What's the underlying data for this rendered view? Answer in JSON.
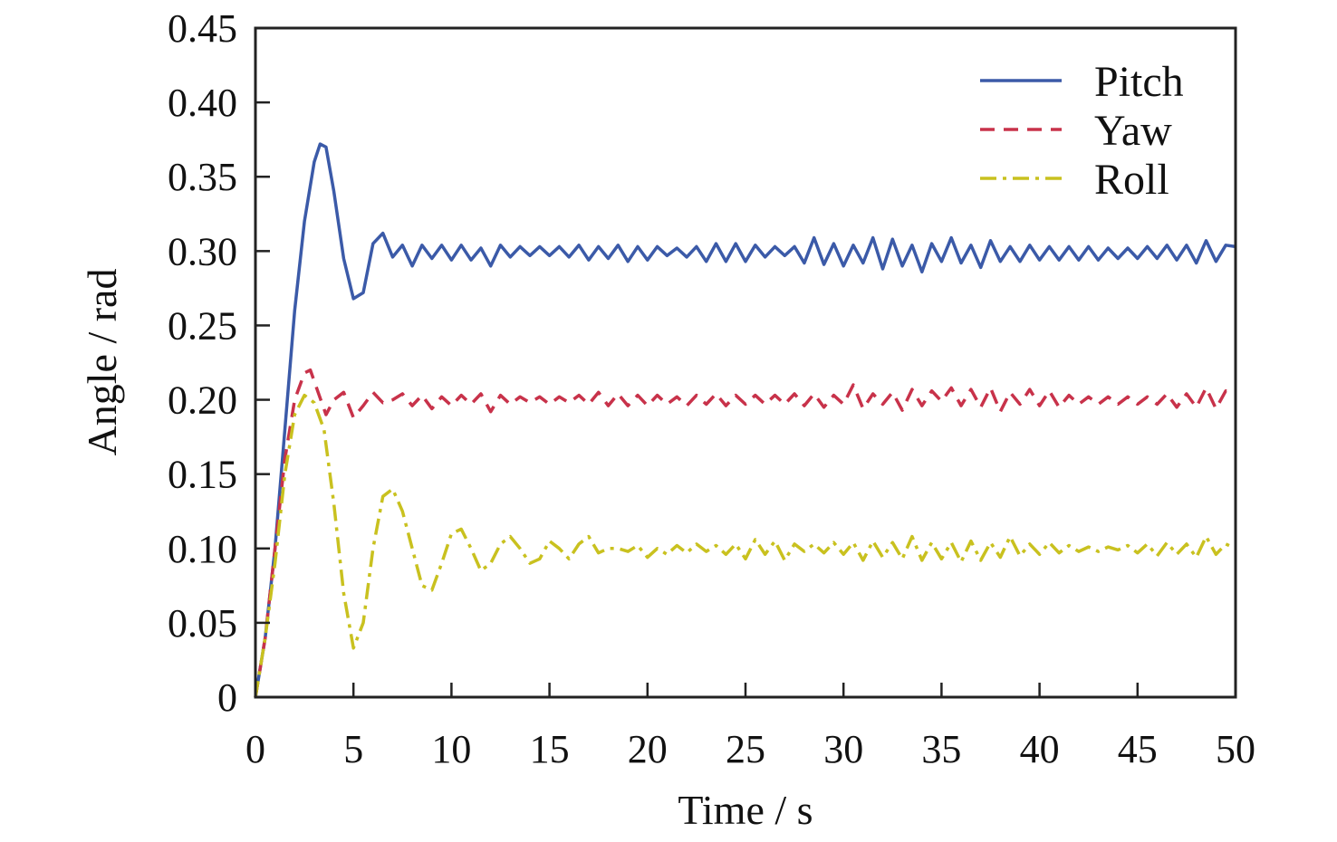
{
  "chart_data": {
    "type": "line",
    "xlabel": "Time / s",
    "ylabel": "Angle / rad",
    "xlim": [
      0,
      50
    ],
    "ylim": [
      0,
      0.45
    ],
    "x_ticks": [
      0,
      5,
      10,
      15,
      20,
      25,
      30,
      35,
      40,
      45,
      50
    ],
    "x_tick_labels": [
      "0",
      "5",
      "10",
      "15",
      "20",
      "25",
      "30",
      "35",
      "40",
      "45",
      "50"
    ],
    "y_ticks": [
      0,
      0.05,
      0.1,
      0.15,
      0.2,
      0.25,
      0.3,
      0.35,
      0.4,
      0.45
    ],
    "y_tick_labels": [
      "0",
      "0.05",
      "0.10",
      "0.15",
      "0.20",
      "0.25",
      "0.30",
      "0.35",
      "0.40",
      "0.45"
    ],
    "grid": false,
    "legend_position": "top-right",
    "series": [
      {
        "name": "Pitch",
        "color": "#3b5aa8",
        "style": "solid",
        "x": [
          0,
          0.5,
          1.0,
          1.5,
          2.0,
          2.5,
          3.0,
          3.3,
          3.6,
          4.0,
          4.5,
          5.0,
          5.5,
          6.0,
          6.5,
          7.0,
          7.5,
          8.0,
          8.5,
          9.0,
          9.5,
          10.0,
          10.5,
          11.0,
          11.5,
          12.0,
          12.5,
          13.0,
          13.5,
          14.0,
          14.5,
          15.0,
          15.5,
          16.0,
          16.5,
          17.0,
          17.5,
          18.0,
          18.5,
          19.0,
          19.5,
          20.0,
          20.5,
          21.0,
          21.5,
          22.0,
          22.5,
          23.0,
          23.5,
          24.0,
          24.5,
          25.0,
          25.5,
          26.0,
          26.5,
          27.0,
          27.5,
          28.0,
          28.5,
          29.0,
          29.5,
          30.0,
          30.5,
          31.0,
          31.5,
          32.0,
          32.5,
          33.0,
          33.5,
          34.0,
          34.5,
          35.0,
          35.5,
          36.0,
          36.5,
          37.0,
          37.5,
          38.0,
          38.5,
          39.0,
          39.5,
          40.0,
          40.5,
          41.0,
          41.5,
          42.0,
          42.5,
          43.0,
          43.5,
          44.0,
          44.5,
          45.0,
          45.5,
          46.0,
          46.5,
          47.0,
          47.5,
          48.0,
          48.5,
          49.0,
          49.5,
          50.0
        ],
        "values": [
          0,
          0.04,
          0.1,
          0.18,
          0.26,
          0.32,
          0.36,
          0.372,
          0.37,
          0.34,
          0.295,
          0.268,
          0.272,
          0.305,
          0.312,
          0.296,
          0.304,
          0.29,
          0.304,
          0.295,
          0.304,
          0.294,
          0.304,
          0.294,
          0.302,
          0.29,
          0.304,
          0.296,
          0.303,
          0.297,
          0.303,
          0.297,
          0.303,
          0.296,
          0.304,
          0.294,
          0.303,
          0.295,
          0.304,
          0.293,
          0.303,
          0.294,
          0.303,
          0.297,
          0.302,
          0.296,
          0.303,
          0.293,
          0.305,
          0.293,
          0.305,
          0.293,
          0.304,
          0.296,
          0.303,
          0.297,
          0.303,
          0.292,
          0.309,
          0.291,
          0.305,
          0.29,
          0.304,
          0.292,
          0.309,
          0.288,
          0.308,
          0.29,
          0.304,
          0.286,
          0.305,
          0.293,
          0.309,
          0.292,
          0.304,
          0.289,
          0.307,
          0.293,
          0.303,
          0.293,
          0.304,
          0.294,
          0.303,
          0.294,
          0.303,
          0.294,
          0.303,
          0.294,
          0.302,
          0.295,
          0.302,
          0.295,
          0.303,
          0.295,
          0.304,
          0.294,
          0.304,
          0.292,
          0.307,
          0.293,
          0.304,
          0.303
        ]
      },
      {
        "name": "Yaw",
        "color": "#c8324a",
        "style": "dashed",
        "x": [
          0,
          0.5,
          1.0,
          1.5,
          2.0,
          2.5,
          2.8,
          3.2,
          3.6,
          4.0,
          4.5,
          5.0,
          5.5,
          6.0,
          6.5,
          7.0,
          7.5,
          8.0,
          8.5,
          9.0,
          9.5,
          10.0,
          10.5,
          11.0,
          11.5,
          12.0,
          12.5,
          13.0,
          13.5,
          14.0,
          14.5,
          15.0,
          15.5,
          16.0,
          16.5,
          17.0,
          17.5,
          18.0,
          18.5,
          19.0,
          19.5,
          20.0,
          20.5,
          21.0,
          21.5,
          22.0,
          22.5,
          23.0,
          23.5,
          24.0,
          24.5,
          25.0,
          25.5,
          26.0,
          26.5,
          27.0,
          27.5,
          28.0,
          28.5,
          29.0,
          29.5,
          30.0,
          30.5,
          31.0,
          31.5,
          32.0,
          32.5,
          33.0,
          33.5,
          34.0,
          34.5,
          35.0,
          35.5,
          36.0,
          36.5,
          37.0,
          37.5,
          38.0,
          38.5,
          39.0,
          39.5,
          40.0,
          40.5,
          41.0,
          41.5,
          42.0,
          42.5,
          43.0,
          43.5,
          44.0,
          44.5,
          45.0,
          45.5,
          46.0,
          46.5,
          47.0,
          47.5,
          48.0,
          48.5,
          49.0,
          49.5,
          50.0
        ],
        "values": [
          0,
          0.04,
          0.1,
          0.16,
          0.2,
          0.218,
          0.22,
          0.205,
          0.19,
          0.2,
          0.205,
          0.188,
          0.196,
          0.205,
          0.198,
          0.2,
          0.204,
          0.196,
          0.203,
          0.194,
          0.202,
          0.196,
          0.203,
          0.197,
          0.204,
          0.192,
          0.203,
          0.197,
          0.202,
          0.198,
          0.202,
          0.197,
          0.202,
          0.198,
          0.203,
          0.197,
          0.205,
          0.196,
          0.204,
          0.196,
          0.203,
          0.196,
          0.203,
          0.197,
          0.202,
          0.196,
          0.203,
          0.197,
          0.204,
          0.196,
          0.203,
          0.197,
          0.203,
          0.197,
          0.203,
          0.197,
          0.204,
          0.196,
          0.204,
          0.195,
          0.203,
          0.197,
          0.21,
          0.194,
          0.204,
          0.197,
          0.205,
          0.193,
          0.207,
          0.196,
          0.206,
          0.199,
          0.208,
          0.196,
          0.207,
          0.195,
          0.208,
          0.192,
          0.205,
          0.197,
          0.207,
          0.196,
          0.206,
          0.195,
          0.203,
          0.197,
          0.202,
          0.197,
          0.202,
          0.197,
          0.202,
          0.197,
          0.202,
          0.197,
          0.204,
          0.195,
          0.204,
          0.195,
          0.208,
          0.194,
          0.206,
          0.205
        ]
      },
      {
        "name": "Roll",
        "color": "#c9c11f",
        "style": "dash-dot",
        "x": [
          0,
          0.5,
          1.0,
          1.5,
          2.0,
          2.5,
          3.0,
          3.5,
          4.0,
          4.5,
          5.0,
          5.5,
          6.0,
          6.5,
          7.0,
          7.5,
          8.0,
          8.5,
          9.0,
          9.5,
          10.0,
          10.5,
          11.0,
          11.5,
          12.0,
          12.5,
          13.0,
          13.5,
          14.0,
          14.5,
          15.0,
          15.5,
          16.0,
          16.5,
          17.0,
          17.5,
          18.0,
          18.5,
          19.0,
          19.5,
          20.0,
          20.5,
          21.0,
          21.5,
          22.0,
          22.5,
          23.0,
          23.5,
          24.0,
          24.5,
          25.0,
          25.5,
          26.0,
          26.5,
          27.0,
          27.5,
          28.0,
          28.5,
          29.0,
          29.5,
          30.0,
          30.5,
          31.0,
          31.5,
          32.0,
          32.5,
          33.0,
          33.5,
          34.0,
          34.5,
          35.0,
          35.5,
          36.0,
          36.5,
          37.0,
          37.5,
          38.0,
          38.5,
          39.0,
          39.5,
          40.0,
          40.5,
          41.0,
          41.5,
          42.0,
          42.5,
          43.0,
          43.5,
          44.0,
          44.5,
          45.0,
          45.5,
          46.0,
          46.5,
          47.0,
          47.5,
          48.0,
          48.5,
          49.0,
          49.5,
          50.0
        ],
        "values": [
          0,
          0.04,
          0.09,
          0.15,
          0.19,
          0.203,
          0.198,
          0.18,
          0.13,
          0.07,
          0.033,
          0.05,
          0.1,
          0.135,
          0.14,
          0.125,
          0.1,
          0.075,
          0.072,
          0.09,
          0.11,
          0.113,
          0.1,
          0.085,
          0.09,
          0.103,
          0.108,
          0.1,
          0.09,
          0.093,
          0.105,
          0.1,
          0.093,
          0.103,
          0.108,
          0.097,
          0.1,
          0.1,
          0.098,
          0.102,
          0.094,
          0.1,
          0.096,
          0.102,
          0.097,
          0.103,
          0.098,
          0.102,
          0.096,
          0.103,
          0.093,
          0.106,
          0.096,
          0.105,
          0.092,
          0.103,
          0.098,
          0.103,
          0.097,
          0.104,
          0.096,
          0.104,
          0.092,
          0.105,
          0.094,
          0.104,
          0.093,
          0.108,
          0.092,
          0.104,
          0.093,
          0.104,
          0.091,
          0.105,
          0.092,
          0.104,
          0.094,
          0.108,
          0.095,
          0.103,
          0.096,
          0.104,
          0.097,
          0.102,
          0.098,
          0.101,
          0.098,
          0.101,
          0.099,
          0.102,
          0.097,
          0.103,
          0.095,
          0.104,
          0.096,
          0.103,
          0.094,
          0.108,
          0.096,
          0.103,
          0.1
        ]
      }
    ]
  }
}
